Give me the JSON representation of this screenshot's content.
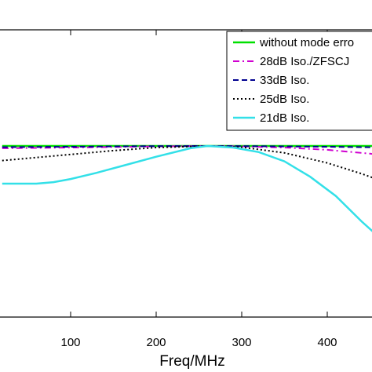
{
  "chart_data": {
    "type": "line",
    "xlabel": "Freq/MHz",
    "ylabel": "",
    "title": "",
    "xlim": [
      20,
      480
    ],
    "x_ticks": [
      100,
      200,
      300,
      400
    ],
    "grid": false,
    "legend_position": "top-right",
    "series": [
      {
        "name": "without mode erro",
        "color": "#00e000",
        "style": "solid",
        "x": [
          20,
          100,
          200,
          260,
          300,
          400,
          480
        ],
        "y": [
          0,
          0,
          0,
          0,
          0,
          0,
          0
        ]
      },
      {
        "name": "28dB Iso./ZFSCJ",
        "color": "#d000d0",
        "style": "dashdot",
        "x": [
          20,
          100,
          200,
          260,
          300,
          350,
          400,
          450,
          480
        ],
        "y": [
          -0.3,
          -0.2,
          -0.05,
          0,
          -0.05,
          -0.2,
          -0.5,
          -1.0,
          -1.4
        ]
      },
      {
        "name": "33dB Iso.",
        "color": "#000090",
        "style": "dashed",
        "x": [
          20,
          100,
          200,
          260,
          300,
          400,
          480
        ],
        "y": [
          -0.15,
          -0.1,
          -0.02,
          0,
          -0.02,
          -0.1,
          -0.2
        ]
      },
      {
        "name": "25dB Iso.",
        "color": "#000000",
        "style": "dotted",
        "x": [
          20,
          60,
          100,
          150,
          200,
          260,
          300,
          350,
          400,
          440,
          480
        ],
        "y": [
          -1.9,
          -1.5,
          -1.1,
          -0.6,
          -0.2,
          0,
          -0.15,
          -0.9,
          -2.2,
          -3.6,
          -5.2
        ]
      },
      {
        "name": "21dB Iso.",
        "color": "#33e0e8",
        "style": "solid",
        "x": [
          20,
          60,
          80,
          100,
          130,
          160,
          200,
          240,
          260,
          290,
          320,
          350,
          380,
          410,
          440,
          470,
          480
        ],
        "y": [
          -4.9,
          -4.9,
          -4.7,
          -4.3,
          -3.5,
          -2.6,
          -1.4,
          -0.3,
          0,
          -0.2,
          -0.8,
          -2.0,
          -4.0,
          -6.5,
          -9.8,
          -12.8,
          -13.6
        ]
      }
    ]
  }
}
